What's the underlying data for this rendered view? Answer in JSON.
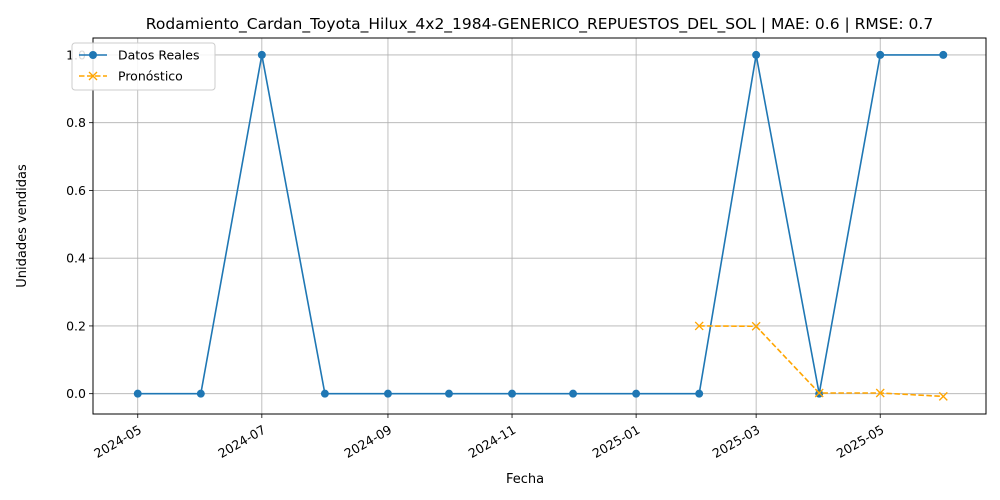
{
  "chart_data": {
    "type": "line",
    "title": "Rodamiento_Cardan_Toyota_Hilux_4x2_1984-GENERICO_REPUESTOS_DEL_SOL | MAE: 0.6 | RMSE: 0.7",
    "xlabel": "Fecha",
    "ylabel": "Unidades vendidas",
    "xlim": [
      "2024-04-09",
      "2025-06-22"
    ],
    "ylim": [
      -0.06,
      1.05
    ],
    "x_ticks": [
      "2024-05-01",
      "2024-07-01",
      "2024-09-01",
      "2024-11-01",
      "2025-01-01",
      "2025-03-01",
      "2025-05-01"
    ],
    "x_tick_labels": [
      "2024-05",
      "2024-07",
      "2024-09",
      "2024-11",
      "2025-01",
      "2025-03",
      "2025-05"
    ],
    "y_ticks": [
      0.0,
      0.2,
      0.4,
      0.6,
      0.8,
      1.0
    ],
    "y_tick_labels": [
      "0.0",
      "0.2",
      "0.4",
      "0.6",
      "0.8",
      "1.0"
    ],
    "grid": true,
    "legend_position": "top-left",
    "series": [
      {
        "name": "Datos Reales",
        "color": "#1f77b4",
        "marker": "circle",
        "line_style": "solid",
        "x": [
          "2024-05-01",
          "2024-06-01",
          "2024-07-01",
          "2024-08-01",
          "2024-09-01",
          "2024-10-01",
          "2024-11-01",
          "2024-12-01",
          "2025-01-01",
          "2025-02-01",
          "2025-03-01",
          "2025-04-01",
          "2025-05-01",
          "2025-06-01"
        ],
        "y": [
          0,
          0,
          1,
          0,
          0,
          0,
          0,
          0,
          0,
          0,
          1,
          0,
          1,
          1
        ]
      },
      {
        "name": "Pronóstico",
        "color": "#ffa500",
        "marker": "x",
        "line_style": "dashed",
        "x": [
          "2025-02-01",
          "2025-03-01",
          "2025-04-01",
          "2025-05-01",
          "2025-06-01"
        ],
        "y": [
          0.2,
          0.199,
          0.002,
          0.002,
          -0.008
        ]
      }
    ]
  }
}
